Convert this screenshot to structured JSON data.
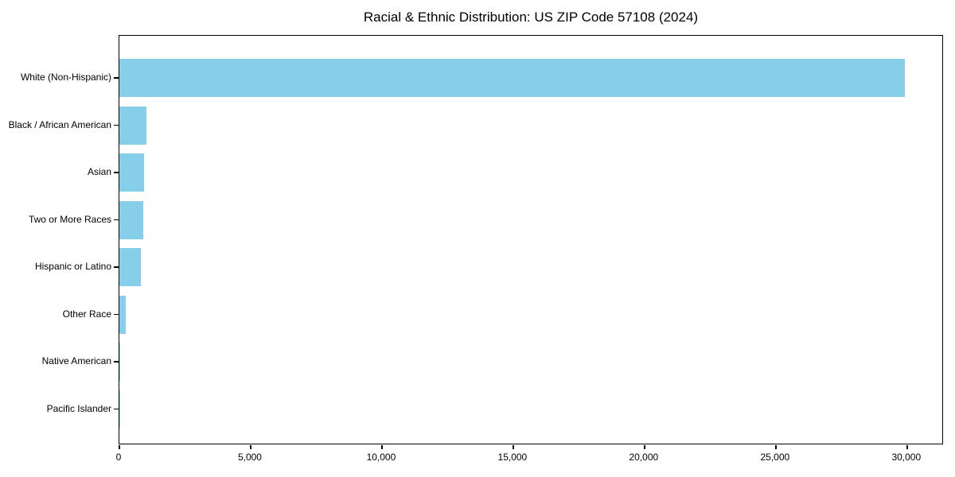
{
  "title": "Racial & Ethnic Distribution: US ZIP Code 57108 (2024)",
  "colors": {
    "bar": "#87CEEB",
    "text": "#000000",
    "spine": "#000000",
    "background": "#ffffff"
  },
  "chart_data": {
    "type": "bar",
    "orientation": "horizontal",
    "title": "Racial & Ethnic Distribution: US ZIP Code 57108 (2024)",
    "categories": [
      "White (Non-Hispanic)",
      "Black / African American",
      "Asian",
      "Two or More Races",
      "Hispanic or Latino",
      "Other Race",
      "Native American",
      "Pacific Islander"
    ],
    "values": [
      29900,
      1030,
      950,
      920,
      820,
      250,
      30,
      10
    ],
    "xlabel": "",
    "ylabel": "",
    "xlim": [
      0,
      31400
    ],
    "x_tick_values": [
      0,
      5000,
      10000,
      15000,
      20000,
      25000,
      30000
    ],
    "x_tick_labels": [
      "0",
      "5,000",
      "10,000",
      "15,000",
      "20,000",
      "25,000",
      "30,000"
    ],
    "grid": false,
    "legend": null,
    "bar_color": "#87CEEB"
  }
}
